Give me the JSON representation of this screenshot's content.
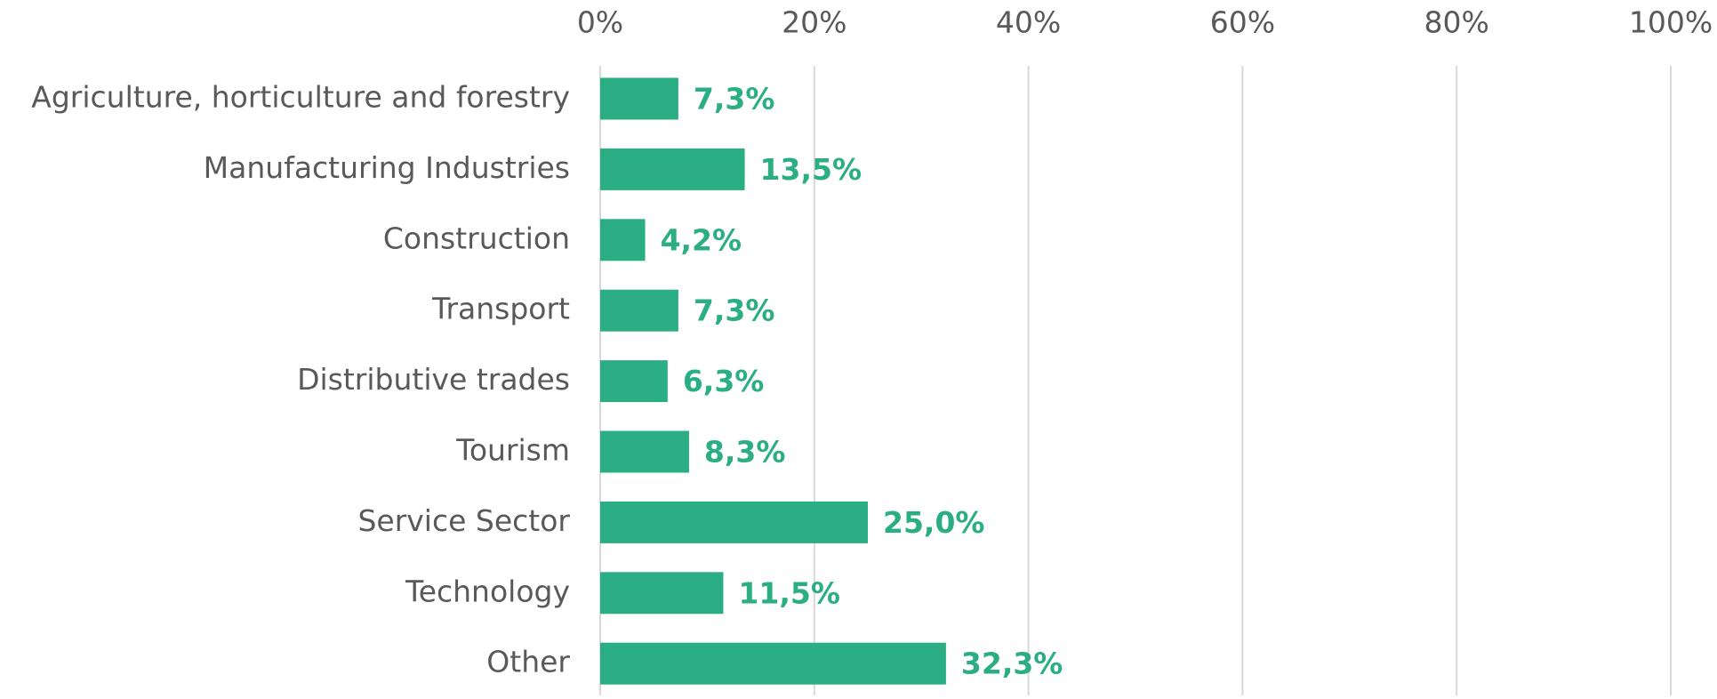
{
  "chart_data": {
    "type": "bar",
    "orientation": "horizontal",
    "categories": [
      "Agriculture, horticulture and forestry",
      "Manufacturing Industries",
      "Construction",
      "Transport",
      "Distributive trades",
      "Tourism",
      "Service Sector",
      "Technology",
      "Other"
    ],
    "values": [
      7.3,
      13.5,
      4.2,
      7.3,
      6.3,
      8.3,
      25.0,
      11.5,
      32.3
    ],
    "value_labels": [
      "7,3%",
      "13,5%",
      "4,2%",
      "7,3%",
      "6,3%",
      "8,3%",
      "25,0%",
      "11,5%",
      "32,3%"
    ],
    "color": "#2bae84",
    "xlim": [
      0,
      100
    ],
    "xticks": [
      {
        "value": 0,
        "label": "0%"
      },
      {
        "value": 20,
        "label": "20%"
      },
      {
        "value": 40,
        "label": "40%"
      },
      {
        "value": 60,
        "label": "60%"
      },
      {
        "value": 80,
        "label": "80%"
      },
      {
        "value": 100,
        "label": "100%"
      }
    ],
    "grid": true
  }
}
